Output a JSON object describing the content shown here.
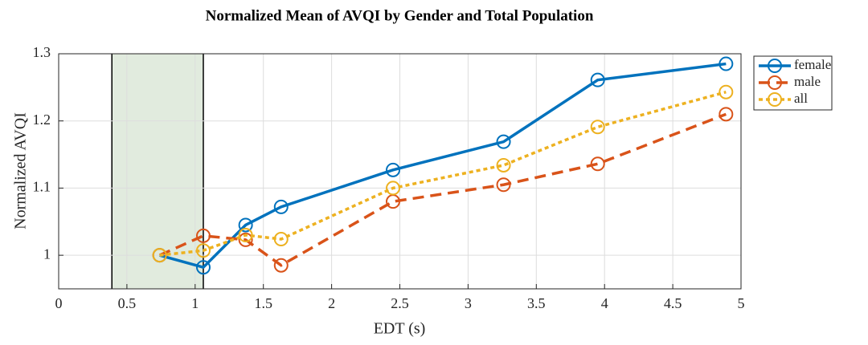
{
  "chart_data": {
    "type": "line",
    "title": "Normalized Mean of AVQI by Gender and Total Population",
    "x_label": "EDT (s)",
    "y_label": "Normalized AVQI",
    "x": [
      0.74,
      1.06,
      1.37,
      1.63,
      2.45,
      3.26,
      3.95,
      4.89
    ],
    "series": [
      {
        "name": "female",
        "color": "#0072bd",
        "line_style": "solid",
        "values": [
          1.0,
          0.982,
          1.045,
          1.072,
          1.127,
          1.169,
          1.261,
          1.285
        ]
      },
      {
        "name": "male",
        "color": "#d95319",
        "line_style": "dashed",
        "values": [
          1.0,
          1.029,
          1.023,
          0.985,
          1.08,
          1.105,
          1.136,
          1.21
        ]
      },
      {
        "name": "all",
        "color": "#edb120",
        "line_style": "dotted",
        "values": [
          1.0,
          1.007,
          1.03,
          1.024,
          1.1,
          1.134,
          1.191,
          1.243
        ]
      }
    ],
    "shaded_region": {
      "x": [
        0.39,
        1.06
      ],
      "color": "#dce8d8"
    },
    "xlim": [
      0,
      5
    ],
    "ylim": [
      0.95,
      1.3
    ],
    "xticks": [
      0,
      0.5,
      1,
      1.5,
      2,
      2.5,
      3,
      3.5,
      4,
      4.5,
      5
    ],
    "yticks": [
      1,
      1.1,
      1.2,
      1.3
    ],
    "grid": true,
    "legend": "outside-top-right"
  }
}
